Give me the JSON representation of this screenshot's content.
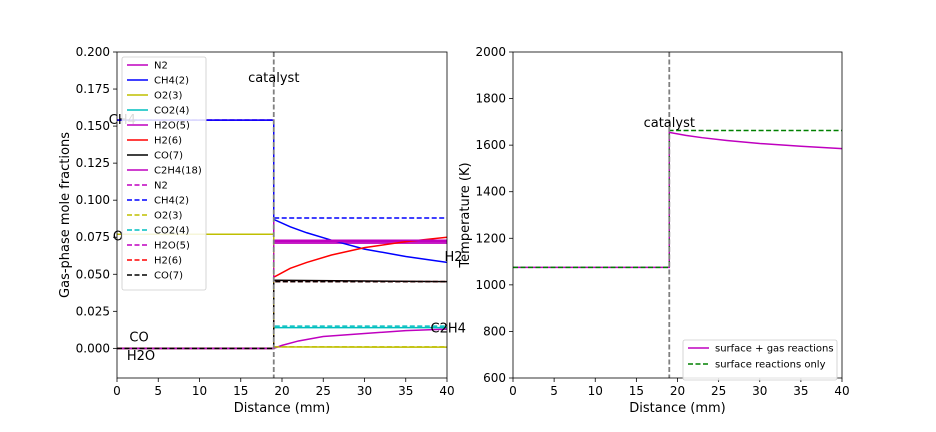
{
  "chart_data": [
    {
      "type": "line",
      "xlabel": "Distance (mm)",
      "ylabel": "Gas-phase mole fractions",
      "xlim": [
        0,
        40
      ],
      "ylim": [
        -0.02,
        0.2
      ],
      "xticks": [
        0,
        5,
        10,
        15,
        20,
        25,
        30,
        35,
        40
      ],
      "xtick_labels": [
        "0",
        "5",
        "10",
        "15",
        "20",
        "25",
        "30",
        "35",
        "40"
      ],
      "yticks": [
        0.0,
        0.025,
        0.05,
        0.075,
        0.1,
        0.125,
        0.15,
        0.175,
        0.2
      ],
      "ytick_labels": [
        "0.000",
        "0.025",
        "0.050",
        "0.075",
        "0.100",
        "0.125",
        "0.150",
        "0.175",
        "0.200"
      ],
      "catalyst_x": 19,
      "catalyst_label": "catalyst",
      "legend_position": "upper-left",
      "series": [
        {
          "name": "N2",
          "color": "#bf00bf",
          "style": "solid",
          "points": [
            [
              0,
              0.154
            ],
            [
              19,
              0.154
            ],
            [
              19,
              0.071
            ],
            [
              40,
              0.071
            ]
          ]
        },
        {
          "name": "CH4(2)",
          "color": "#0000ff",
          "style": "solid",
          "points": [
            [
              0,
              0.154
            ],
            [
              19,
              0.154
            ],
            [
              19,
              0.087
            ],
            [
              21,
              0.082
            ],
            [
              23,
              0.078
            ],
            [
              26,
              0.073
            ],
            [
              30,
              0.067
            ],
            [
              35,
              0.062
            ],
            [
              40,
              0.058
            ]
          ]
        },
        {
          "name": "O2(3)",
          "color": "#bfbf00",
          "style": "solid",
          "points": [
            [
              0,
              0.077
            ],
            [
              19,
              0.077
            ],
            [
              19,
              0.001
            ],
            [
              40,
              0.0008
            ]
          ]
        },
        {
          "name": "CO2(4)",
          "color": "#00bfbf",
          "style": "solid",
          "points": [
            [
              0,
              0.0
            ],
            [
              19,
              0.0
            ],
            [
              19,
              0.014
            ],
            [
              40,
              0.014
            ]
          ]
        },
        {
          "name": "H2O(5)",
          "color": "#bf00bf",
          "style": "solid",
          "points": [
            [
              0,
              0.0
            ],
            [
              19,
              0.0
            ],
            [
              19,
              0.072
            ],
            [
              40,
              0.072
            ]
          ]
        },
        {
          "name": "H2(6)",
          "color": "#ff0000",
          "style": "solid",
          "points": [
            [
              0,
              0.0
            ],
            [
              19,
              0.0
            ],
            [
              19,
              0.048
            ],
            [
              21,
              0.054
            ],
            [
              23,
              0.058
            ],
            [
              26,
              0.063
            ],
            [
              30,
              0.068
            ],
            [
              35,
              0.072
            ],
            [
              40,
              0.075
            ]
          ]
        },
        {
          "name": "CO(7)",
          "color": "#000000",
          "style": "solid",
          "points": [
            [
              0,
              0.0
            ],
            [
              19,
              0.0
            ],
            [
              19,
              0.046
            ],
            [
              40,
              0.045
            ]
          ]
        },
        {
          "name": "C2H4(18)",
          "color": "#bf00bf",
          "style": "solid",
          "points": [
            [
              0,
              0.0
            ],
            [
              19,
              0.0
            ],
            [
              20,
              0.002
            ],
            [
              22,
              0.005
            ],
            [
              25,
              0.008
            ],
            [
              30,
              0.01
            ],
            [
              35,
              0.012
            ],
            [
              40,
              0.013
            ]
          ]
        },
        {
          "name": "N2",
          "color": "#bf00bf",
          "style": "dashed",
          "points": [
            [
              0,
              0.154
            ],
            [
              19,
              0.154
            ],
            [
              19,
              0.073
            ],
            [
              40,
              0.073
            ]
          ]
        },
        {
          "name": "CH4(2)",
          "color": "#0000ff",
          "style": "dashed",
          "points": [
            [
              0,
              0.154
            ],
            [
              19,
              0.154
            ],
            [
              19,
              0.088
            ],
            [
              40,
              0.088
            ]
          ]
        },
        {
          "name": "O2(3)",
          "color": "#bfbf00",
          "style": "dashed",
          "points": [
            [
              0,
              0.077
            ],
            [
              19,
              0.077
            ],
            [
              19,
              0.001
            ],
            [
              40,
              0.001
            ]
          ]
        },
        {
          "name": "CO2(4)",
          "color": "#00bfbf",
          "style": "dashed",
          "points": [
            [
              0,
              0.0
            ],
            [
              19,
              0.0
            ],
            [
              19,
              0.015
            ],
            [
              40,
              0.015
            ]
          ]
        },
        {
          "name": "H2O(5)",
          "color": "#bf00bf",
          "style": "dashed",
          "points": [
            [
              0,
              0.0
            ],
            [
              19,
              0.0
            ],
            [
              19,
              0.073
            ],
            [
              40,
              0.073
            ]
          ]
        },
        {
          "name": "H2(6)",
          "color": "#ff0000",
          "style": "dashed",
          "points": [
            [
              0,
              0.0
            ],
            [
              19,
              0.0
            ],
            [
              19,
              0.045
            ],
            [
              40,
              0.045
            ]
          ]
        },
        {
          "name": "CO(7)",
          "color": "#000000",
          "style": "dashed",
          "points": [
            [
              0,
              0.0
            ],
            [
              19,
              0.0
            ],
            [
              19,
              0.045
            ],
            [
              40,
              0.045
            ]
          ]
        }
      ],
      "annotations": [
        {
          "text": "CH4",
          "x": -1,
          "y": 0.154
        },
        {
          "text": "O",
          "x": -0.5,
          "y": 0.0755
        },
        {
          "text": "CO",
          "x": 1.5,
          "y": 0.0075
        },
        {
          "text": "H2O",
          "x": 1.2,
          "y": -0.005
        },
        {
          "text": "H2",
          "x": 39.7,
          "y": 0.0615
        },
        {
          "text": "C2H4",
          "x": 38,
          "y": 0.0135
        }
      ]
    },
    {
      "type": "line",
      "xlabel": "Distance (mm)",
      "ylabel": "Temperature (K)",
      "xlim": [
        0,
        40
      ],
      "ylim": [
        600,
        2000
      ],
      "xticks": [
        0,
        5,
        10,
        15,
        20,
        25,
        30,
        35,
        40
      ],
      "xtick_labels": [
        "0",
        "5",
        "10",
        "15",
        "20",
        "25",
        "30",
        "35",
        "40"
      ],
      "yticks": [
        600,
        800,
        1000,
        1200,
        1400,
        1600,
        1800,
        2000
      ],
      "ytick_labels": [
        "600",
        "800",
        "1000",
        "1200",
        "1400",
        "1600",
        "1800",
        "2000"
      ],
      "catalyst_x": 19,
      "catalyst_label": "catalyst",
      "legend_position": "lower-right",
      "series": [
        {
          "name": "surface + gas reactions",
          "color": "#bf00bf",
          "style": "solid",
          "points": [
            [
              0,
              1075
            ],
            [
              19,
              1075
            ],
            [
              19,
              1655
            ],
            [
              21,
              1642
            ],
            [
              23,
              1632
            ],
            [
              26,
              1620
            ],
            [
              30,
              1607
            ],
            [
              35,
              1595
            ],
            [
              40,
              1585
            ]
          ]
        },
        {
          "name": "surface reactions only",
          "color": "#008000",
          "style": "dashed",
          "points": [
            [
              0,
              1075
            ],
            [
              19,
              1075
            ],
            [
              19,
              1663
            ],
            [
              40,
              1663
            ]
          ]
        }
      ],
      "annotations": []
    }
  ]
}
